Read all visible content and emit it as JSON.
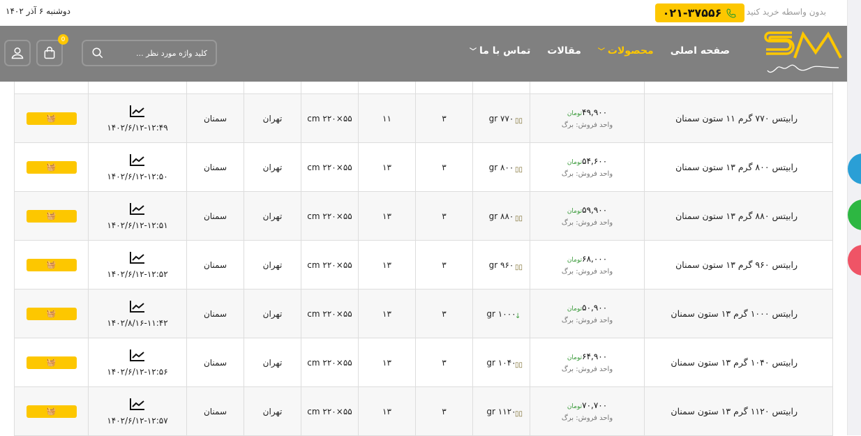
{
  "topbar": {
    "date": "دوشنبه ۶ آذر ۱۴۰۲",
    "promo": "بدون واسطه خرید کنید",
    "phone": "۰۲۱-۳۷۵۵۶"
  },
  "nav": {
    "items": [
      {
        "label": "صفحه اصلی"
      },
      {
        "label": "محصولات",
        "active": true,
        "dropdown": true
      },
      {
        "label": "مقالات"
      },
      {
        "label": "تماس با ما",
        "dropdown": true
      }
    ],
    "search_placeholder": "کلید واژه مورد نظر ...",
    "cart_count": "0"
  },
  "colors": {
    "accent": "#fdc700",
    "nav_bg": "#808080"
  },
  "table": {
    "unit_label": "واحد فروش: برگ",
    "currency": "تومان",
    "rows": [
      {
        "name": "رابیتس ۷۷۰ گرم ۱۱ ستون سمنان",
        "price": "۴۹,۹۰۰",
        "trend": "steady",
        "weight": "۷۷۰ gr",
        "c1": "۳",
        "c2": "۱۱",
        "size": "۵۵×۲۲۰ cm",
        "city1": "تهران",
        "city2": "سمنان",
        "updated": "۱۴۰۲/۶/۱۲-۱۲:۴۹"
      },
      {
        "name": "رابیتس ۸۰۰ گرم ۱۳ ستون سمنان",
        "price": "۵۴,۶۰۰",
        "trend": "steady",
        "weight": "۸۰۰ gr",
        "c1": "۳",
        "c2": "۱۳",
        "size": "۵۵×۲۲۰ cm",
        "city1": "تهران",
        "city2": "سمنان",
        "updated": "۱۴۰۲/۶/۱۲-۱۲:۵۰"
      },
      {
        "name": "رابیتس ۸۸۰ گرم ۱۳ ستون سمنان",
        "price": "۵۹,۹۰۰",
        "trend": "steady",
        "weight": "۸۸۰ gr",
        "c1": "۳",
        "c2": "۱۳",
        "size": "۵۵×۲۲۰ cm",
        "city1": "تهران",
        "city2": "سمنان",
        "updated": "۱۴۰۲/۶/۱۲-۱۲:۵۱"
      },
      {
        "name": "رابیتس ۹۶۰ گرم ۱۳ ستون سمنان",
        "price": "۶۸,۰۰۰",
        "trend": "steady",
        "weight": "۹۶۰ gr",
        "c1": "۳",
        "c2": "۱۳",
        "size": "۵۵×۲۲۰ cm",
        "city1": "تهران",
        "city2": "سمنان",
        "updated": "۱۴۰۲/۶/۱۲-۱۲:۵۲"
      },
      {
        "name": "رابیتس ۱۰۰۰ گرم ۱۳ ستون سمنان",
        "price": "۵۰,۹۰۰",
        "trend": "down",
        "weight": "۱۰۰۰ gr",
        "c1": "۳",
        "c2": "۱۳",
        "size": "۵۵×۲۲۰ cm",
        "city1": "تهران",
        "city2": "سمنان",
        "updated": "۱۴۰۲/۸/۱۶-۱۱:۴۲"
      },
      {
        "name": "رابیتس ۱۰۴۰ گرم ۱۳ ستون سمنان",
        "price": "۶۴,۹۰۰",
        "trend": "steady",
        "weight": "۱۰۴۰ gr",
        "c1": "۳",
        "c2": "۱۳",
        "size": "۵۵×۲۲۰ cm",
        "city1": "تهران",
        "city2": "سمنان",
        "updated": "۱۴۰۲/۶/۱۲-۱۲:۵۶"
      },
      {
        "name": "رابیتس ۱۱۲۰ گرم ۱۳ ستون سمنان",
        "price": "۷۰,۷۰۰",
        "trend": "steady",
        "weight": "۱۱۲۰ gr",
        "c1": "۳",
        "c2": "۱۳",
        "size": "۵۵×۲۲۰ cm",
        "city1": "تهران",
        "city2": "سمنان",
        "updated": "۱۴۰۲/۶/۱۲-۱۲:۵۷"
      }
    ]
  }
}
